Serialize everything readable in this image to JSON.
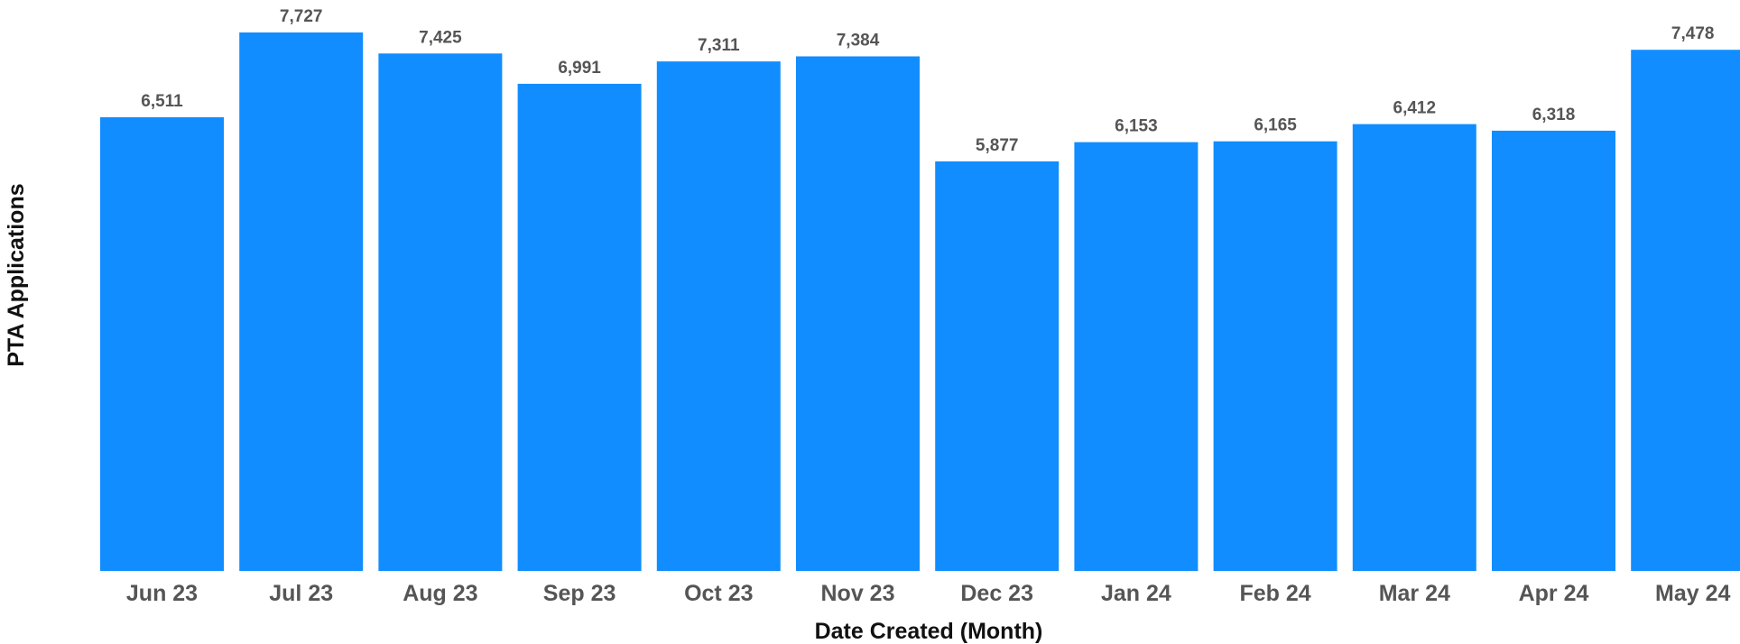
{
  "chart_data": {
    "type": "bar",
    "title": "",
    "xlabel": "Date Created (Month)",
    "ylabel": "PTA Applications",
    "categories": [
      "Jun 23",
      "Jul 23",
      "Aug 23",
      "Sep 23",
      "Oct 23",
      "Nov 23",
      "Dec 23",
      "Jan 24",
      "Feb 24",
      "Mar 24",
      "Apr 24",
      "May 24"
    ],
    "values": [
      6511,
      7727,
      7425,
      6991,
      7311,
      7384,
      5877,
      6153,
      6165,
      6412,
      6318,
      7478
    ],
    "value_labels": [
      "6,511",
      "7,727",
      "7,425",
      "6,991",
      "7,311",
      "7,384",
      "5,877",
      "6,153",
      "6,165",
      "6,412",
      "6,318",
      "7,478"
    ],
    "ylim": [
      0,
      7727
    ],
    "grid": false,
    "legend": "none",
    "bar_color": "#118DFF"
  }
}
